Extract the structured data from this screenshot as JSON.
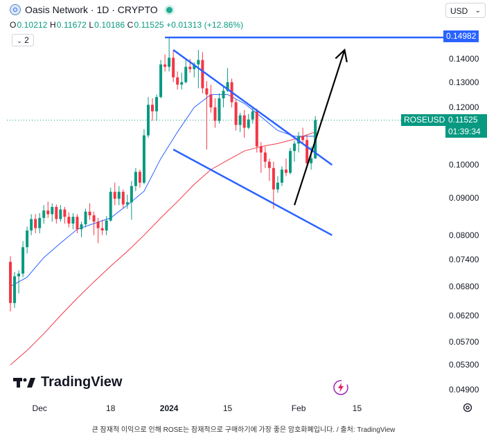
{
  "header": {
    "title": "Oasis Network · 1D · CRYPTO",
    "ohlc": {
      "o_label": "O",
      "o": "0.10212",
      "h_label": "H",
      "h": "0.11672",
      "l_label": "L",
      "l": "0.10186",
      "c_label": "C",
      "c": "0.11525",
      "change": "+0.01313 (+12.86%)"
    },
    "indicator_toggle": "2",
    "currency": "USD"
  },
  "price_tags": {
    "target": "0.14982",
    "symbol": "ROSEUSD",
    "last": "0.11525",
    "countdown": "01:39:34"
  },
  "colors": {
    "up": "#089981",
    "down": "#f23645",
    "ma_fast": "#2962ff",
    "ma_slow": "#f23645",
    "pattern": "#2962ff",
    "arrow": "#000000",
    "tag_blue": "#2962ff",
    "tag_green": "#089981"
  },
  "chart_data": {
    "type": "candlestick",
    "symbol": "ROSEUSD",
    "y_axis_scale": "log",
    "y_ticks": [
      "0.14000",
      "0.13000",
      "0.12000",
      "0.11000",
      "0.10000",
      "0.09000",
      "0.08000",
      "0.07400",
      "0.06800",
      "0.06200",
      "0.05700",
      "0.05300",
      "0.04900"
    ],
    "y_tick_values": [
      0.14,
      0.13,
      0.12,
      0.11,
      0.1,
      0.09,
      0.08,
      0.074,
      0.068,
      0.062,
      0.057,
      0.053,
      0.049
    ],
    "x_ticks": [
      "Dec",
      "18",
      "2024",
      "15",
      "Feb",
      "15"
    ],
    "x_tick_dates": [
      "2023-12-01",
      "2023-12-18",
      "2024-01-01",
      "2024-01-15",
      "2024-02-01",
      "2024-02-15"
    ],
    "ylim": [
      0.0465,
      0.1575
    ],
    "candles": [
      {
        "date": "2023-11-24",
        "o": 0.0735,
        "h": 0.0748,
        "l": 0.0628,
        "c": 0.0645
      },
      {
        "date": "2023-11-25",
        "o": 0.0645,
        "h": 0.0712,
        "l": 0.0635,
        "c": 0.0702
      },
      {
        "date": "2023-11-26",
        "o": 0.0702,
        "h": 0.0715,
        "l": 0.0665,
        "c": 0.0708
      },
      {
        "date": "2023-11-27",
        "o": 0.0708,
        "h": 0.0785,
        "l": 0.07,
        "c": 0.077
      },
      {
        "date": "2023-11-28",
        "o": 0.077,
        "h": 0.0822,
        "l": 0.0755,
        "c": 0.0812
      },
      {
        "date": "2023-11-29",
        "o": 0.0812,
        "h": 0.0855,
        "l": 0.08,
        "c": 0.0842
      },
      {
        "date": "2023-11-30",
        "o": 0.0842,
        "h": 0.0855,
        "l": 0.0805,
        "c": 0.0818
      },
      {
        "date": "2023-12-01",
        "o": 0.0818,
        "h": 0.0858,
        "l": 0.0805,
        "c": 0.0845
      },
      {
        "date": "2023-12-02",
        "o": 0.0845,
        "h": 0.088,
        "l": 0.083,
        "c": 0.0865
      },
      {
        "date": "2023-12-03",
        "o": 0.0865,
        "h": 0.089,
        "l": 0.0845,
        "c": 0.0855
      },
      {
        "date": "2023-12-04",
        "o": 0.0855,
        "h": 0.0885,
        "l": 0.0835,
        "c": 0.0875
      },
      {
        "date": "2023-12-05",
        "o": 0.0875,
        "h": 0.0882,
        "l": 0.083,
        "c": 0.0842
      },
      {
        "date": "2023-12-06",
        "o": 0.0842,
        "h": 0.088,
        "l": 0.0835,
        "c": 0.0868
      },
      {
        "date": "2023-12-07",
        "o": 0.0868,
        "h": 0.0875,
        "l": 0.083,
        "c": 0.0848
      },
      {
        "date": "2023-12-08",
        "o": 0.0848,
        "h": 0.086,
        "l": 0.082,
        "c": 0.083
      },
      {
        "date": "2023-12-09",
        "o": 0.083,
        "h": 0.0858,
        "l": 0.0815,
        "c": 0.0848
      },
      {
        "date": "2023-12-10",
        "o": 0.0848,
        "h": 0.0855,
        "l": 0.0805,
        "c": 0.0815
      },
      {
        "date": "2023-12-11",
        "o": 0.0815,
        "h": 0.0835,
        "l": 0.0795,
        "c": 0.0828
      },
      {
        "date": "2023-12-12",
        "o": 0.0828,
        "h": 0.087,
        "l": 0.082,
        "c": 0.0862
      },
      {
        "date": "2023-12-13",
        "o": 0.0862,
        "h": 0.0885,
        "l": 0.084,
        "c": 0.0852
      },
      {
        "date": "2023-12-14",
        "o": 0.0852,
        "h": 0.0862,
        "l": 0.08,
        "c": 0.0835
      },
      {
        "date": "2023-12-15",
        "o": 0.0835,
        "h": 0.0845,
        "l": 0.078,
        "c": 0.0818
      },
      {
        "date": "2023-12-16",
        "o": 0.0818,
        "h": 0.084,
        "l": 0.08,
        "c": 0.0812
      },
      {
        "date": "2023-12-17",
        "o": 0.0812,
        "h": 0.085,
        "l": 0.08,
        "c": 0.0838
      },
      {
        "date": "2023-12-18",
        "o": 0.0838,
        "h": 0.093,
        "l": 0.0835,
        "c": 0.0918
      },
      {
        "date": "2023-12-19",
        "o": 0.0918,
        "h": 0.0945,
        "l": 0.088,
        "c": 0.0898
      },
      {
        "date": "2023-12-20",
        "o": 0.0898,
        "h": 0.0935,
        "l": 0.088,
        "c": 0.0918
      },
      {
        "date": "2023-12-21",
        "o": 0.0918,
        "h": 0.0925,
        "l": 0.087,
        "c": 0.0882
      },
      {
        "date": "2023-12-22",
        "o": 0.0882,
        "h": 0.091,
        "l": 0.087,
        "c": 0.0888
      },
      {
        "date": "2023-12-23",
        "o": 0.0888,
        "h": 0.095,
        "l": 0.084,
        "c": 0.0935
      },
      {
        "date": "2023-12-24",
        "o": 0.0935,
        "h": 0.099,
        "l": 0.092,
        "c": 0.0978
      },
      {
        "date": "2023-12-25",
        "o": 0.0978,
        "h": 0.0985,
        "l": 0.093,
        "c": 0.0945
      },
      {
        "date": "2023-12-26",
        "o": 0.0945,
        "h": 0.112,
        "l": 0.094,
        "c": 0.1098
      },
      {
        "date": "2023-12-27",
        "o": 0.1098,
        "h": 0.124,
        "l": 0.109,
        "c": 0.121
      },
      {
        "date": "2023-12-28",
        "o": 0.121,
        "h": 0.1235,
        "l": 0.115,
        "c": 0.1185
      },
      {
        "date": "2023-12-29",
        "o": 0.1185,
        "h": 0.125,
        "l": 0.115,
        "c": 0.124
      },
      {
        "date": "2023-12-30",
        "o": 0.124,
        "h": 0.1395,
        "l": 0.1235,
        "c": 0.1375
      },
      {
        "date": "2023-12-31",
        "o": 0.1375,
        "h": 0.142,
        "l": 0.1345,
        "c": 0.1365
      },
      {
        "date": "2024-01-01",
        "o": 0.1365,
        "h": 0.1498,
        "l": 0.1345,
        "c": 0.1405
      },
      {
        "date": "2024-01-02",
        "o": 0.1405,
        "h": 0.144,
        "l": 0.13,
        "c": 0.132
      },
      {
        "date": "2024-01-03",
        "o": 0.132,
        "h": 0.1345,
        "l": 0.127,
        "c": 0.129
      },
      {
        "date": "2024-01-04",
        "o": 0.129,
        "h": 0.134,
        "l": 0.127,
        "c": 0.13
      },
      {
        "date": "2024-01-05",
        "o": 0.13,
        "h": 0.1395,
        "l": 0.1295,
        "c": 0.1365
      },
      {
        "date": "2024-01-06",
        "o": 0.1365,
        "h": 0.14,
        "l": 0.134,
        "c": 0.1355
      },
      {
        "date": "2024-01-07",
        "o": 0.1355,
        "h": 0.1385,
        "l": 0.132,
        "c": 0.1375
      },
      {
        "date": "2024-01-08",
        "o": 0.1375,
        "h": 0.144,
        "l": 0.1275,
        "c": 0.1395
      },
      {
        "date": "2024-01-09",
        "o": 0.1395,
        "h": 0.143,
        "l": 0.1255,
        "c": 0.1275
      },
      {
        "date": "2024-01-10",
        "o": 0.1275,
        "h": 0.1305,
        "l": 0.105,
        "c": 0.125
      },
      {
        "date": "2024-01-11",
        "o": 0.125,
        "h": 0.129,
        "l": 0.118,
        "c": 0.12
      },
      {
        "date": "2024-01-12",
        "o": 0.12,
        "h": 0.1235,
        "l": 0.1125,
        "c": 0.115
      },
      {
        "date": "2024-01-13",
        "o": 0.115,
        "h": 0.1255,
        "l": 0.114,
        "c": 0.1235
      },
      {
        "date": "2024-01-14",
        "o": 0.1235,
        "h": 0.128,
        "l": 0.12,
        "c": 0.1265
      },
      {
        "date": "2024-01-15",
        "o": 0.1265,
        "h": 0.136,
        "l": 0.126,
        "c": 0.13
      },
      {
        "date": "2024-01-16",
        "o": 0.13,
        "h": 0.1315,
        "l": 0.12,
        "c": 0.122
      },
      {
        "date": "2024-01-17",
        "o": 0.122,
        "h": 0.123,
        "l": 0.1115,
        "c": 0.1135
      },
      {
        "date": "2024-01-18",
        "o": 0.1135,
        "h": 0.118,
        "l": 0.111,
        "c": 0.117
      },
      {
        "date": "2024-01-19",
        "o": 0.117,
        "h": 0.119,
        "l": 0.109,
        "c": 0.1125
      },
      {
        "date": "2024-01-20",
        "o": 0.1125,
        "h": 0.1175,
        "l": 0.112,
        "c": 0.1155
      },
      {
        "date": "2024-01-21",
        "o": 0.1155,
        "h": 0.12,
        "l": 0.114,
        "c": 0.1185
      },
      {
        "date": "2024-01-22",
        "o": 0.1185,
        "h": 0.1195,
        "l": 0.104,
        "c": 0.106
      },
      {
        "date": "2024-01-23",
        "o": 0.106,
        "h": 0.1075,
        "l": 0.0975,
        "c": 0.104
      },
      {
        "date": "2024-01-24",
        "o": 0.104,
        "h": 0.106,
        "l": 0.099,
        "c": 0.101
      },
      {
        "date": "2024-01-25",
        "o": 0.101,
        "h": 0.102,
        "l": 0.095,
        "c": 0.099
      },
      {
        "date": "2024-01-26",
        "o": 0.099,
        "h": 0.101,
        "l": 0.087,
        "c": 0.0925
      },
      {
        "date": "2024-01-27",
        "o": 0.0925,
        "h": 0.0965,
        "l": 0.0915,
        "c": 0.0945
      },
      {
        "date": "2024-01-28",
        "o": 0.0945,
        "h": 0.0995,
        "l": 0.0935,
        "c": 0.0985
      },
      {
        "date": "2024-01-29",
        "o": 0.0985,
        "h": 0.102,
        "l": 0.0965,
        "c": 0.0975
      },
      {
        "date": "2024-01-30",
        "o": 0.0975,
        "h": 0.1055,
        "l": 0.097,
        "c": 0.1045
      },
      {
        "date": "2024-01-31",
        "o": 0.1045,
        "h": 0.108,
        "l": 0.101,
        "c": 0.107
      },
      {
        "date": "2024-02-01",
        "o": 0.107,
        "h": 0.111,
        "l": 0.104,
        "c": 0.1095
      },
      {
        "date": "2024-02-02",
        "o": 0.1095,
        "h": 0.1125,
        "l": 0.107,
        "c": 0.1082
      },
      {
        "date": "2024-02-03",
        "o": 0.1082,
        "h": 0.11,
        "l": 0.099,
        "c": 0.1005
      },
      {
        "date": "2024-02-04",
        "o": 0.1005,
        "h": 0.106,
        "l": 0.0985,
        "c": 0.1021
      },
      {
        "date": "2024-02-05",
        "o": 0.1021,
        "h": 0.1167,
        "l": 0.1019,
        "c": 0.1153
      }
    ],
    "ma_fast": {
      "color": "#2962ff",
      "points": [
        [
          "2023-11-24",
          0.068
        ],
        [
          "2023-11-28",
          0.07
        ],
        [
          "2023-12-02",
          0.0745
        ],
        [
          "2023-12-06",
          0.078
        ],
        [
          "2023-12-10",
          0.0815
        ],
        [
          "2023-12-14",
          0.083
        ],
        [
          "2023-12-18",
          0.0845
        ],
        [
          "2023-12-22",
          0.088
        ],
        [
          "2023-12-26",
          0.092
        ],
        [
          "2023-12-30",
          0.102
        ],
        [
          "2024-01-03",
          0.111
        ],
        [
          "2024-01-07",
          0.12
        ],
        [
          "2024-01-11",
          0.125
        ],
        [
          "2024-01-15",
          0.125
        ],
        [
          "2024-01-19",
          0.1215
        ],
        [
          "2024-01-23",
          0.1165
        ],
        [
          "2024-01-27",
          0.1115
        ],
        [
          "2024-01-31",
          0.1095
        ],
        [
          "2024-02-05",
          0.1095
        ]
      ]
    },
    "ma_slow": {
      "color": "#f23645",
      "points": [
        [
          "2023-11-24",
          0.053
        ],
        [
          "2023-11-28",
          0.0555
        ],
        [
          "2023-12-02",
          0.0585
        ],
        [
          "2023-12-06",
          0.062
        ],
        [
          "2023-12-10",
          0.0655
        ],
        [
          "2023-12-14",
          0.069
        ],
        [
          "2023-12-18",
          0.0725
        ],
        [
          "2023-12-22",
          0.076
        ],
        [
          "2023-12-26",
          0.08
        ],
        [
          "2023-12-30",
          0.0845
        ],
        [
          "2024-01-03",
          0.089
        ],
        [
          "2024-01-07",
          0.094
        ],
        [
          "2024-01-11",
          0.0985
        ],
        [
          "2024-01-15",
          0.1015
        ],
        [
          "2024-01-19",
          0.1045
        ],
        [
          "2024-01-23",
          0.106
        ],
        [
          "2024-01-27",
          0.107
        ],
        [
          "2024-01-31",
          0.1085
        ],
        [
          "2024-02-05",
          0.111
        ]
      ]
    },
    "target_line": {
      "value": 0.14982,
      "from": "2023-12-31"
    },
    "last_price_line": {
      "value": 0.11525
    },
    "falling_wedge_upper": [
      [
        "2024-01-02",
        0.144
      ],
      [
        "2024-02-09",
        0.1
      ]
    ],
    "falling_wedge_lower": [
      [
        "2024-01-02",
        0.105
      ],
      [
        "2024-02-09",
        0.08
      ]
    ],
    "breakout_arrow": [
      [
        "2024-01-31",
        0.088
      ],
      [
        "2024-02-12",
        0.144
      ]
    ]
  },
  "watermark": "TradingView",
  "caption": "큰 잠재적 이익으로 인해 ROSE는 잠재적으로 구매하기에 가장 좋은 암호화폐입니다. / 출처: TradingView"
}
